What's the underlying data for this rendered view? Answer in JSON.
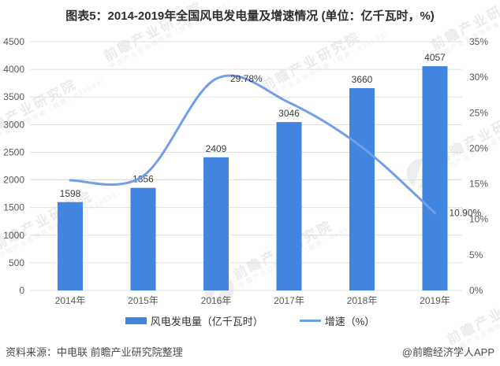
{
  "page": {
    "title": "图表5：2014-2019年全国风电发电量及增速情况 (单位：亿千瓦时，%)",
    "source": "资料来源：中电联 前瞻产业研究院整理",
    "credit": "@前瞻经济学人APP"
  },
  "watermark": {
    "text": "前瞻产业研究院",
    "subtext": "中国产业咨询领导者（股票：839599）"
  },
  "chart_data": {
    "type": "bar+line",
    "title": "图表5：2014-2019年全国风电发电量及增速情况 (单位：亿千瓦时，%)",
    "categories": [
      "2014年",
      "2015年",
      "2016年",
      "2017年",
      "2018年",
      "2019年"
    ],
    "series": [
      {
        "name": "风电发电量（亿千瓦时）",
        "type": "bar",
        "axis": "left",
        "color": "#4285e0",
        "values": [
          1598,
          1856,
          2409,
          3046,
          3660,
          4057
        ],
        "labels": [
          "1598",
          "1856",
          "2409",
          "3046",
          "3660",
          "4057"
        ]
      },
      {
        "name": "增速（%）",
        "type": "line",
        "axis": "right",
        "color": "#6f9fe8",
        "values": [
          15.5,
          16.1,
          29.78,
          26.44,
          20.16,
          10.9
        ],
        "labels": [
          null,
          null,
          "29.78%",
          null,
          null,
          "10.90%"
        ]
      }
    ],
    "left_axis": {
      "min": 0,
      "max": 4500,
      "step": 500,
      "ticks": [
        "0",
        "500",
        "1000",
        "1500",
        "2000",
        "2500",
        "3000",
        "3500",
        "4000",
        "4500"
      ]
    },
    "right_axis": {
      "min": 0,
      "max": 35,
      "step": 5,
      "ticks": [
        "0%",
        "5%",
        "10%",
        "15%",
        "20%",
        "25%",
        "30%",
        "35%"
      ]
    },
    "grid": true,
    "legend_position": "bottom"
  }
}
